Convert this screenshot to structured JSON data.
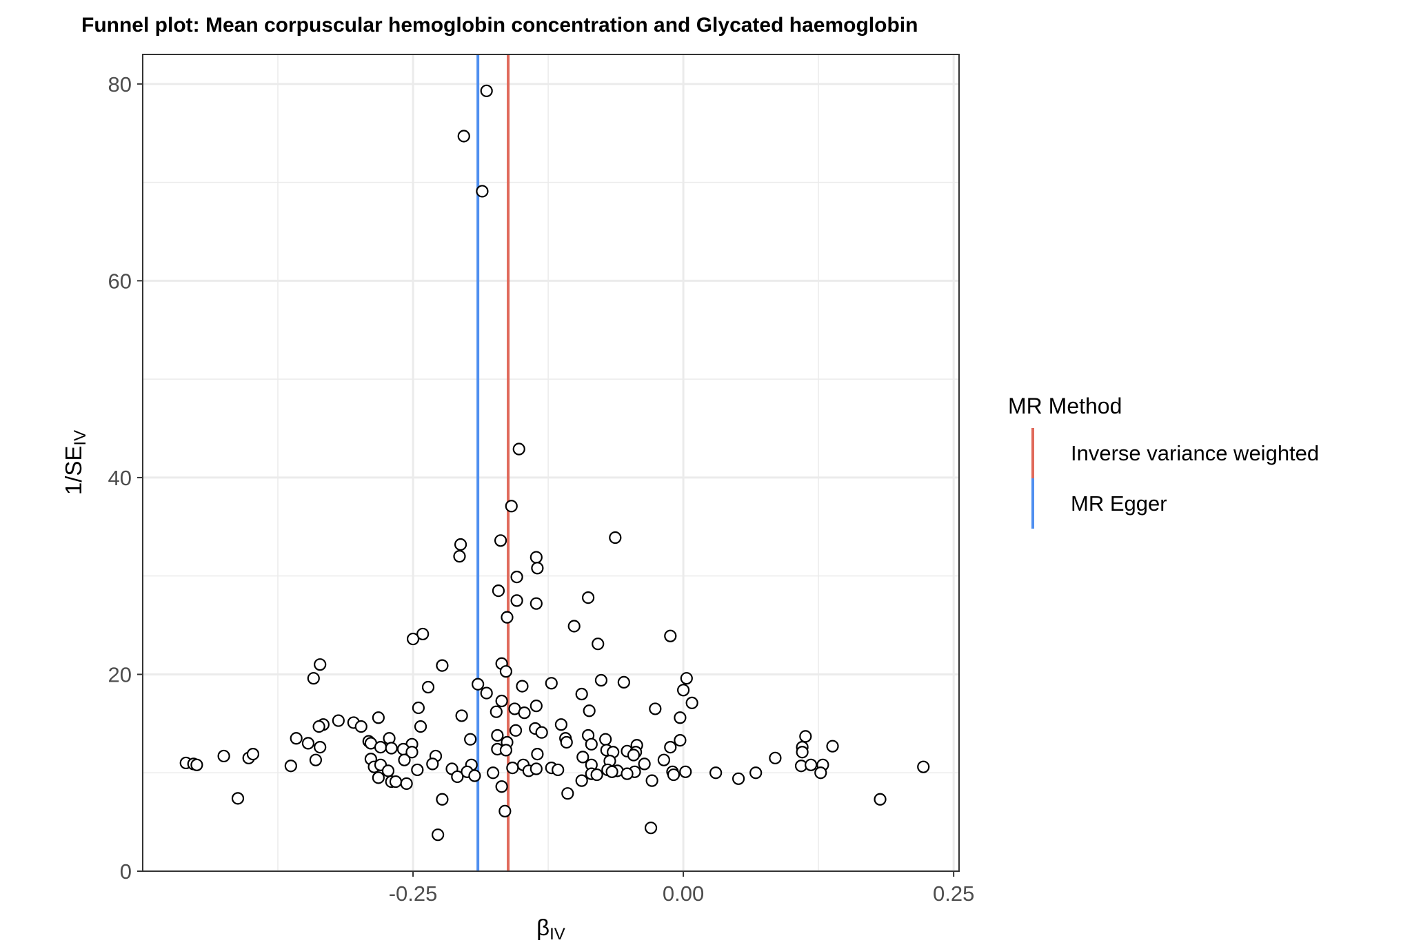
{
  "chart_data": {
    "type": "scatter",
    "title": "Funnel plot: Mean corpuscular hemoglobin concentration and Glycated haemoglobin",
    "xlabel": {
      "main": "β",
      "sub": "IV"
    },
    "ylabel": {
      "main": "1/SE",
      "sub": "IV"
    },
    "xlim": [
      -0.5,
      0.255
    ],
    "ylim": [
      0,
      83
    ],
    "x_ticks": [
      -0.25,
      0.0,
      0.25
    ],
    "x_tick_labels": [
      "-0.25",
      "0.00",
      "0.25"
    ],
    "y_ticks": [
      0,
      20,
      40,
      60,
      80
    ],
    "y_tick_labels": [
      "0",
      "20",
      "40",
      "60",
      "80"
    ],
    "grid": true,
    "legend": {
      "title": "MR Method",
      "position": "right",
      "entries": [
        {
          "label": "Inverse variance weighted",
          "color": "#E0695A"
        },
        {
          "label": "MR Egger",
          "color": "#4F8FF0"
        }
      ]
    },
    "lines": [
      {
        "name": "Inverse variance weighted",
        "x": -0.162,
        "color": "#E0695A"
      },
      {
        "name": "MR Egger",
        "x": -0.19,
        "color": "#4F8FF0"
      }
    ],
    "points": [
      {
        "x": -0.182,
        "y": 79.3
      },
      {
        "x": -0.203,
        "y": 74.7
      },
      {
        "x": -0.186,
        "y": 69.1
      },
      {
        "x": -0.152,
        "y": 42.9
      },
      {
        "x": -0.159,
        "y": 37.1
      },
      {
        "x": -0.169,
        "y": 33.6
      },
      {
        "x": -0.206,
        "y": 33.2
      },
      {
        "x": -0.207,
        "y": 32.0
      },
      {
        "x": -0.136,
        "y": 31.9
      },
      {
        "x": -0.135,
        "y": 30.8
      },
      {
        "x": -0.154,
        "y": 29.9
      },
      {
        "x": -0.063,
        "y": 33.9
      },
      {
        "x": -0.171,
        "y": 28.5
      },
      {
        "x": -0.154,
        "y": 27.5
      },
      {
        "x": -0.136,
        "y": 27.2
      },
      {
        "x": -0.088,
        "y": 27.8
      },
      {
        "x": -0.163,
        "y": 25.8
      },
      {
        "x": -0.101,
        "y": 24.9
      },
      {
        "x": -0.012,
        "y": 23.9
      },
      {
        "x": -0.241,
        "y": 24.1
      },
      {
        "x": -0.25,
        "y": 23.6
      },
      {
        "x": -0.079,
        "y": 23.1
      },
      {
        "x": -0.336,
        "y": 21.0
      },
      {
        "x": -0.223,
        "y": 20.9
      },
      {
        "x": -0.168,
        "y": 21.1
      },
      {
        "x": -0.164,
        "y": 20.3
      },
      {
        "x": -0.342,
        "y": 19.6
      },
      {
        "x": 0.003,
        "y": 19.6
      },
      {
        "x": -0.076,
        "y": 19.4
      },
      {
        "x": -0.055,
        "y": 19.2
      },
      {
        "x": -0.122,
        "y": 19.1
      },
      {
        "x": -0.19,
        "y": 19.0
      },
      {
        "x": -0.149,
        "y": 18.8
      },
      {
        "x": -0.236,
        "y": 18.7
      },
      {
        "x": 0.0,
        "y": 18.4
      },
      {
        "x": -0.182,
        "y": 18.1
      },
      {
        "x": -0.094,
        "y": 18.0
      },
      {
        "x": -0.168,
        "y": 17.3
      },
      {
        "x": 0.008,
        "y": 17.1
      },
      {
        "x": -0.245,
        "y": 16.6
      },
      {
        "x": -0.136,
        "y": 16.8
      },
      {
        "x": -0.156,
        "y": 16.5
      },
      {
        "x": -0.026,
        "y": 16.5
      },
      {
        "x": -0.087,
        "y": 16.3
      },
      {
        "x": -0.147,
        "y": 16.1
      },
      {
        "x": -0.173,
        "y": 16.2
      },
      {
        "x": -0.205,
        "y": 15.8
      },
      {
        "x": -0.282,
        "y": 15.6
      },
      {
        "x": -0.003,
        "y": 15.6
      },
      {
        "x": -0.319,
        "y": 15.3
      },
      {
        "x": -0.305,
        "y": 15.1
      },
      {
        "x": -0.298,
        "y": 14.7
      },
      {
        "x": -0.333,
        "y": 14.9
      },
      {
        "x": -0.337,
        "y": 14.7
      },
      {
        "x": -0.243,
        "y": 14.7
      },
      {
        "x": -0.113,
        "y": 14.9
      },
      {
        "x": -0.137,
        "y": 14.5
      },
      {
        "x": -0.155,
        "y": 14.3
      },
      {
        "x": -0.131,
        "y": 14.1
      },
      {
        "x": -0.358,
        "y": 13.5
      },
      {
        "x": -0.172,
        "y": 13.8
      },
      {
        "x": -0.197,
        "y": 13.4
      },
      {
        "x": -0.088,
        "y": 13.8
      },
      {
        "x": -0.109,
        "y": 13.5
      },
      {
        "x": -0.072,
        "y": 13.4
      },
      {
        "x": 0.113,
        "y": 13.7
      },
      {
        "x": -0.003,
        "y": 13.3
      },
      {
        "x": -0.291,
        "y": 13.2
      },
      {
        "x": -0.289,
        "y": 13.0
      },
      {
        "x": -0.272,
        "y": 13.5
      },
      {
        "x": -0.347,
        "y": 13.0
      },
      {
        "x": -0.251,
        "y": 12.9
      },
      {
        "x": -0.108,
        "y": 13.1
      },
      {
        "x": -0.163,
        "y": 13.1
      },
      {
        "x": -0.085,
        "y": 12.9
      },
      {
        "x": -0.043,
        "y": 12.8
      },
      {
        "x": -0.336,
        "y": 12.6
      },
      {
        "x": -0.28,
        "y": 12.6
      },
      {
        "x": -0.27,
        "y": 12.5
      },
      {
        "x": -0.259,
        "y": 12.4
      },
      {
        "x": -0.172,
        "y": 12.4
      },
      {
        "x": -0.164,
        "y": 12.3
      },
      {
        "x": -0.071,
        "y": 12.3
      },
      {
        "x": -0.065,
        "y": 12.1
      },
      {
        "x": -0.052,
        "y": 12.2
      },
      {
        "x": -0.044,
        "y": 12.1
      },
      {
        "x": -0.012,
        "y": 12.6
      },
      {
        "x": 0.11,
        "y": 12.6
      },
      {
        "x": 0.138,
        "y": 12.7
      },
      {
        "x": -0.251,
        "y": 12.1
      },
      {
        "x": -0.229,
        "y": 11.7
      },
      {
        "x": -0.135,
        "y": 11.9
      },
      {
        "x": -0.093,
        "y": 11.6
      },
      {
        "x": -0.068,
        "y": 11.2
      },
      {
        "x": -0.046,
        "y": 11.8
      },
      {
        "x": 0.11,
        "y": 12.1
      },
      {
        "x": -0.425,
        "y": 11.7
      },
      {
        "x": -0.402,
        "y": 11.5
      },
      {
        "x": -0.398,
        "y": 11.9
      },
      {
        "x": -0.34,
        "y": 11.3
      },
      {
        "x": -0.289,
        "y": 11.4
      },
      {
        "x": -0.258,
        "y": 11.3
      },
      {
        "x": -0.018,
        "y": 11.3
      },
      {
        "x": 0.085,
        "y": 11.5
      },
      {
        "x": -0.46,
        "y": 11.0
      },
      {
        "x": -0.453,
        "y": 10.9
      },
      {
        "x": -0.45,
        "y": 10.8
      },
      {
        "x": -0.363,
        "y": 10.7
      },
      {
        "x": -0.286,
        "y": 10.6
      },
      {
        "x": -0.28,
        "y": 10.8
      },
      {
        "x": -0.232,
        "y": 10.9
      },
      {
        "x": -0.196,
        "y": 10.8
      },
      {
        "x": -0.148,
        "y": 10.8
      },
      {
        "x": -0.122,
        "y": 10.5
      },
      {
        "x": -0.085,
        "y": 10.8
      },
      {
        "x": -0.036,
        "y": 10.9
      },
      {
        "x": 0.109,
        "y": 10.7
      },
      {
        "x": 0.118,
        "y": 10.8
      },
      {
        "x": 0.129,
        "y": 10.8
      },
      {
        "x": 0.222,
        "y": 10.6
      },
      {
        "x": -0.273,
        "y": 10.2
      },
      {
        "x": -0.246,
        "y": 10.3
      },
      {
        "x": -0.214,
        "y": 10.4
      },
      {
        "x": -0.2,
        "y": 10.1
      },
      {
        "x": -0.176,
        "y": 10.0
      },
      {
        "x": -0.158,
        "y": 10.5
      },
      {
        "x": -0.143,
        "y": 10.2
      },
      {
        "x": -0.136,
        "y": 10.4
      },
      {
        "x": -0.116,
        "y": 10.3
      },
      {
        "x": -0.07,
        "y": 10.3
      },
      {
        "x": -0.061,
        "y": 10.2
      },
      {
        "x": -0.045,
        "y": 10.1
      },
      {
        "x": -0.01,
        "y": 10.1
      },
      {
        "x": 0.002,
        "y": 10.1
      },
      {
        "x": -0.209,
        "y": 9.6
      },
      {
        "x": -0.193,
        "y": 9.7
      },
      {
        "x": -0.085,
        "y": 9.9
      },
      {
        "x": -0.08,
        "y": 9.8
      },
      {
        "x": -0.066,
        "y": 10.1
      },
      {
        "x": -0.052,
        "y": 9.9
      },
      {
        "x": -0.009,
        "y": 9.8
      },
      {
        "x": 0.03,
        "y": 10.0
      },
      {
        "x": 0.067,
        "y": 10.0
      },
      {
        "x": 0.127,
        "y": 10.0
      },
      {
        "x": -0.282,
        "y": 9.5
      },
      {
        "x": -0.27,
        "y": 9.1
      },
      {
        "x": -0.266,
        "y": 9.1
      },
      {
        "x": -0.256,
        "y": 8.9
      },
      {
        "x": -0.168,
        "y": 8.6
      },
      {
        "x": -0.094,
        "y": 9.2
      },
      {
        "x": -0.029,
        "y": 9.2
      },
      {
        "x": 0.051,
        "y": 9.4
      },
      {
        "x": -0.107,
        "y": 7.9
      },
      {
        "x": -0.412,
        "y": 7.4
      },
      {
        "x": -0.223,
        "y": 7.3
      },
      {
        "x": 0.182,
        "y": 7.3
      },
      {
        "x": -0.165,
        "y": 6.1
      },
      {
        "x": -0.03,
        "y": 4.4
      },
      {
        "x": -0.227,
        "y": 3.7
      }
    ]
  }
}
